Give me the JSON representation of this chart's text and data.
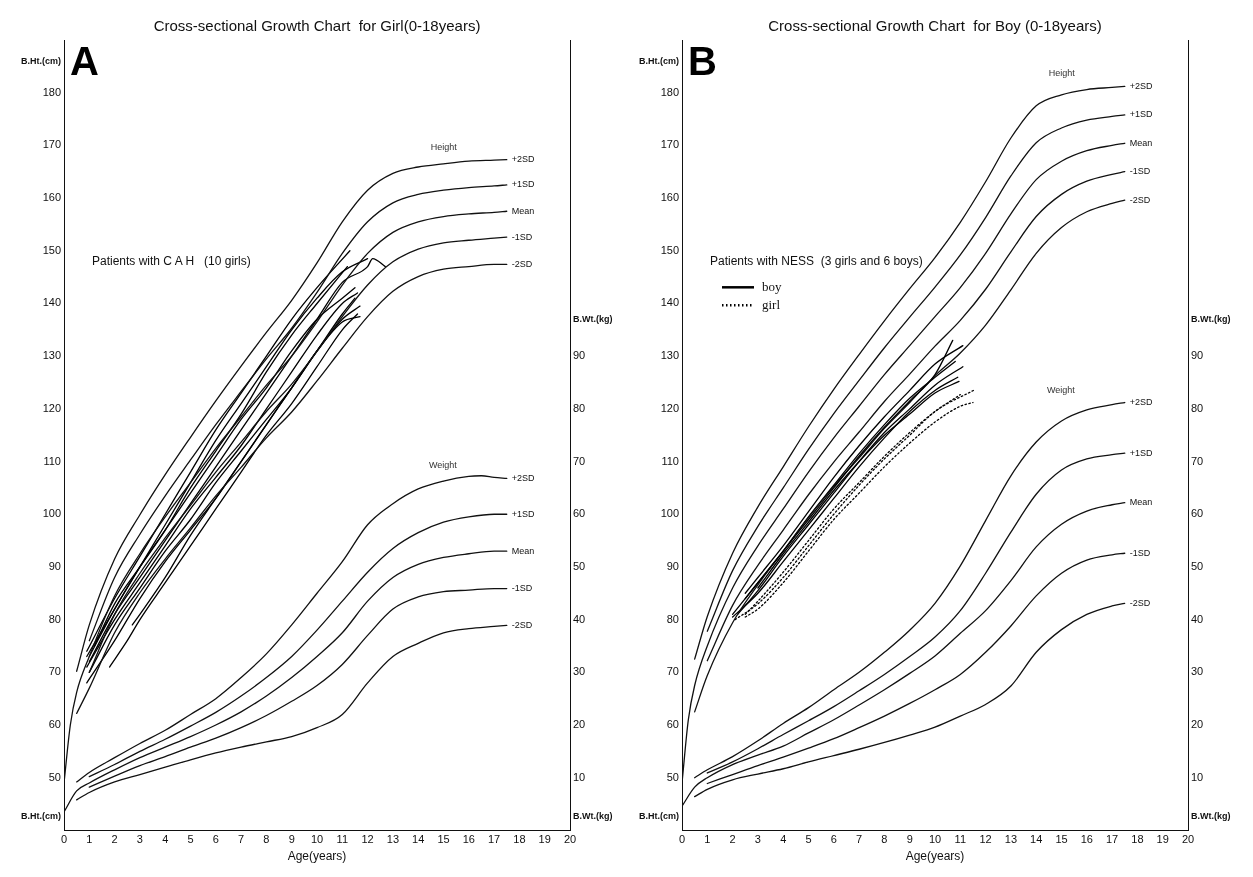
{
  "chart_data": [
    {
      "type": "line",
      "title": "Cross-sectional Growth Chart  for Girl(0-18years)",
      "xlabel": "Age(years)",
      "ylabel": "B.Ht.(cm)",
      "y2label": "B.Wt.(kg)",
      "xlim": [
        0,
        20
      ],
      "xticks": [
        0,
        1,
        2,
        3,
        4,
        5,
        6,
        7,
        8,
        9,
        10,
        11,
        12,
        13,
        14,
        15,
        16,
        17,
        18,
        19,
        20
      ],
      "ylim": [
        40,
        190
      ],
      "yticks": [
        50,
        60,
        70,
        80,
        90,
        100,
        110,
        120,
        130,
        140,
        150,
        160,
        170,
        180
      ],
      "y2lim": [
        0,
        150
      ],
      "y2ticks": [
        10,
        20,
        30,
        40,
        50,
        60,
        70,
        80,
        90
      ],
      "grid": false,
      "annotations": [
        "A",
        "Patients with C A H   (10 girls)",
        "Height",
        "Weight"
      ],
      "series": [
        {
          "name": "+2SD",
          "color": "#111111",
          "x": [
            0.5,
            1,
            2,
            3,
            4,
            5,
            6,
            7,
            8,
            9,
            10,
            11,
            12,
            13,
            14,
            15,
            16,
            17,
            17.5
          ],
          "values": [
            70.2,
            79,
            91.5,
            99.9,
            107.5,
            114.6,
            121.5,
            128.1,
            134.5,
            140.6,
            147.7,
            155.5,
            161.5,
            164.7,
            165.9,
            166.5,
            167,
            167.2,
            167.3
          ]
        },
        {
          "name": "+1SD",
          "color": "#111111",
          "x": [
            1,
            2,
            3,
            4,
            5,
            6,
            7,
            8,
            9,
            10,
            11,
            12,
            13,
            14,
            15,
            16,
            17,
            17.5
          ],
          "values": [
            76,
            88,
            96.2,
            103.5,
            110.3,
            117,
            123.3,
            129.5,
            135.3,
            142.1,
            149.5,
            155.5,
            159.1,
            160.7,
            161.5,
            162,
            162.3,
            162.5
          ]
        },
        {
          "name": "Mean",
          "color": "#111111",
          "x": [
            0,
            0.25,
            0.5,
            1,
            2,
            3,
            4,
            5,
            6,
            7,
            8,
            9,
            10,
            11,
            12,
            13,
            14,
            15,
            16,
            17,
            17.5
          ],
          "values": [
            49,
            60,
            66.2,
            73,
            84.5,
            92.5,
            99.5,
            106,
            112.5,
            118.5,
            124.5,
            130,
            136.5,
            143.5,
            149.5,
            153.5,
            155.5,
            156.5,
            157,
            157.3,
            157.5
          ]
        },
        {
          "name": "-1SD",
          "color": "#111111",
          "x": [
            1,
            2,
            3,
            4,
            5,
            6,
            7,
            8,
            9,
            10,
            11,
            12,
            13,
            14,
            15,
            16,
            17,
            17.5
          ],
          "values": [
            70,
            81,
            88.8,
            95.5,
            101.7,
            108,
            113.7,
            119.5,
            124.7,
            130.9,
            137.5,
            143.5,
            147.9,
            150.3,
            151.5,
            152,
            152.4,
            152.6
          ]
        },
        {
          "name": "-2SD",
          "color": "#111111",
          "x": [
            0.5,
            1,
            2,
            3,
            4,
            5,
            6,
            7,
            8,
            9,
            10,
            11,
            12,
            13,
            14,
            15,
            16,
            17,
            17.5
          ],
          "values": [
            62.2,
            67,
            77.5,
            85.1,
            91.5,
            97.4,
            103.5,
            108.9,
            114.5,
            119.4,
            125.3,
            131.5,
            137.5,
            142.3,
            145.1,
            146.5,
            147,
            147.4,
            147.4
          ]
        },
        {
          "name": "+2SD",
          "color": "#111111",
          "axis": "y2",
          "x": [
            0.5,
            1,
            2,
            3,
            4,
            5,
            6,
            7,
            8,
            9,
            10,
            11,
            12,
            13,
            14,
            15,
            16,
            16.5,
            17,
            17.5
          ],
          "values": [
            9.2,
            11,
            13.8,
            16.5,
            19,
            22,
            25,
            29,
            33.5,
            39,
            45,
            51,
            58,
            62,
            64.8,
            66.3,
            67.2,
            67.3,
            67,
            66.8
          ]
        },
        {
          "name": "+1SD",
          "color": "#111111",
          "axis": "y2",
          "x": [
            1,
            2,
            3,
            4,
            5,
            6,
            7,
            8,
            9,
            10,
            11,
            12,
            13,
            14,
            15,
            16,
            17,
            17.5
          ],
          "values": [
            10.2,
            12.5,
            15,
            17.3,
            19.8,
            22.4,
            25.5,
            29,
            33,
            38,
            43.5,
            49,
            53.5,
            56.5,
            58.5,
            59.5,
            60,
            60
          ]
        },
        {
          "name": "Mean",
          "color": "#111111",
          "axis": "y2",
          "x": [
            0,
            0.5,
            1,
            2,
            3,
            4,
            5,
            6,
            7,
            8,
            9,
            10,
            11,
            12,
            13,
            14,
            15,
            16,
            17,
            17.5
          ],
          "values": [
            3.5,
            7.5,
            9,
            11.5,
            13.8,
            15.8,
            17.8,
            20,
            22.5,
            25.5,
            29,
            33,
            37.5,
            43.5,
            48,
            50.5,
            51.8,
            52.5,
            53,
            53
          ]
        },
        {
          "name": "-1SD",
          "color": "#111111",
          "axis": "y2",
          "x": [
            1,
            2,
            3,
            4,
            5,
            6,
            7,
            8,
            9,
            10,
            11,
            12,
            13,
            14,
            15,
            16,
            17,
            17.5
          ],
          "values": [
            8.2,
            10.3,
            12.3,
            14,
            15.8,
            17.5,
            19.5,
            21.8,
            24.5,
            27.5,
            31.5,
            37,
            42,
            44.3,
            45.3,
            45.6,
            45.9,
            45.9
          ]
        },
        {
          "name": "-2SD",
          "color": "#111111",
          "axis": "y2",
          "x": [
            0.5,
            1,
            2,
            3,
            4,
            5,
            6,
            7,
            8,
            9,
            10,
            11,
            12,
            13,
            14,
            15,
            16,
            17,
            17.5
          ],
          "values": [
            5.8,
            7.2,
            9.2,
            10.6,
            12,
            13.4,
            14.7,
            15.8,
            16.8,
            17.8,
            19.5,
            22,
            28,
            33,
            35.5,
            37.5,
            38.3,
            38.7,
            38.9
          ]
        },
        {
          "color": "#000000",
          "x": [
            0.9,
            2,
            3,
            4,
            5,
            6,
            7,
            8,
            9,
            10,
            11.3
          ],
          "values": [
            74,
            84,
            92,
            100,
            108,
            116,
            123,
            130,
            137,
            143,
            150
          ]
        },
        {
          "color": "#000000",
          "x": [
            0.9,
            2,
            3,
            4,
            5,
            6,
            7,
            8,
            9,
            10,
            11,
            11.5
          ],
          "values": [
            73,
            82,
            90,
            97,
            104,
            111,
            118,
            124,
            131,
            137,
            141,
            143
          ]
        },
        {
          "color": "#000000",
          "x": [
            1,
            2,
            3,
            4,
            5,
            6,
            7,
            8,
            9,
            10,
            11,
            12,
            12.2,
            12.7
          ],
          "values": [
            72,
            81,
            88,
            95,
            102,
            109,
            116,
            123,
            130,
            137,
            144,
            147,
            148.5,
            147
          ]
        },
        {
          "color": "#000000",
          "x": [
            0.9,
            2,
            3,
            4,
            5,
            6,
            7,
            8,
            9,
            10,
            11,
            11.6
          ],
          "values": [
            71,
            80,
            87,
            94,
            101,
            107,
            113,
            120,
            127,
            134,
            140,
            142
          ]
        },
        {
          "color": "#000000",
          "x": [
            1,
            2,
            3,
            4,
            5,
            6,
            7,
            8,
            9,
            10,
            11,
            11.7
          ],
          "values": [
            70,
            79,
            86,
            93,
            99,
            106,
            112,
            118,
            124,
            131,
            137,
            139.5
          ]
        },
        {
          "color": "#000000",
          "x": [
            0.9,
            2,
            3,
            4,
            5,
            6,
            7,
            8,
            9,
            10,
            11,
            11.7
          ],
          "values": [
            68,
            76,
            84,
            91,
            97,
            103,
            110,
            117,
            124,
            131,
            136.5,
            137.5
          ]
        },
        {
          "color": "#000000",
          "x": [
            1.2,
            2,
            3,
            4,
            5,
            6,
            7,
            8,
            9,
            10,
            11.2
          ],
          "values": [
            75,
            83,
            90,
            97,
            105,
            112,
            119,
            127,
            134,
            140,
            147
          ]
        },
        {
          "color": "#000000",
          "x": [
            1.8,
            2.5,
            3,
            4,
            5,
            6,
            7,
            8,
            9,
            10,
            11,
            11.6
          ],
          "values": [
            71,
            76,
            80,
            87,
            94,
            101,
            108,
            115,
            121,
            128,
            135,
            138
          ]
        },
        {
          "color": "#000000",
          "x": [
            2.7,
            3,
            4,
            5,
            6,
            7,
            8,
            9,
            10,
            11,
            11.5
          ],
          "values": [
            79,
            81,
            88,
            96,
            103,
            110,
            117,
            124,
            131,
            138,
            141
          ]
        },
        {
          "color": "#000000",
          "x": [
            1,
            2,
            3,
            4,
            5,
            6,
            7,
            8,
            9,
            10,
            11,
            12
          ],
          "values": [
            73,
            82,
            90,
            98,
            106,
            114,
            121,
            128,
            135,
            141,
            146,
            148.5
          ]
        }
      ]
    },
    {
      "type": "line",
      "title": "Cross-sectional Growth Chart  for Boy (0-18years)",
      "xlabel": "Age(years)",
      "ylabel": "B.Ht.(cm)",
      "y2label": "B.Wt.(kg)",
      "xlim": [
        0,
        20
      ],
      "xticks": [
        0,
        1,
        2,
        3,
        4,
        5,
        6,
        7,
        8,
        9,
        10,
        11,
        12,
        13,
        14,
        15,
        16,
        17,
        18,
        19,
        20
      ],
      "ylim": [
        40,
        190
      ],
      "yticks": [
        50,
        60,
        70,
        80,
        90,
        100,
        110,
        120,
        130,
        140,
        150,
        160,
        170,
        180
      ],
      "y2lim": [
        0,
        150
      ],
      "y2ticks": [
        10,
        20,
        30,
        40,
        50,
        60,
        70,
        80,
        90
      ],
      "grid": false,
      "legend": "top left",
      "annotations": [
        "B",
        "Patients with NESS  (3 girls and 6 boys)",
        "Height",
        "Weight"
      ],
      "series": [
        {
          "name": "boy",
          "color": "#000000",
          "line_style": "solid",
          "x": [
            2,
            3,
            4,
            5,
            6,
            7,
            8,
            9,
            10,
            10.7
          ],
          "values": [
            81,
            87,
            93,
            99,
            105,
            111,
            116.5,
            121.5,
            126.5,
            133
          ]
        },
        {
          "name": "girl",
          "color": "#000000",
          "line_style": "dotted",
          "x": [
            2.1,
            3,
            4,
            5,
            6,
            7,
            8,
            9,
            10,
            11.6
          ],
          "values": [
            80,
            83,
            88,
            94,
            100,
            105.5,
            110.5,
            115,
            119.5,
            123.7
          ]
        },
        {
          "name": "+2SD",
          "color": "#111111",
          "x": [
            0.5,
            1,
            2,
            3,
            4,
            5,
            6,
            7,
            8,
            9,
            10,
            11,
            12,
            13,
            14,
            15,
            16,
            17,
            17.5
          ],
          "values": [
            72.5,
            80.6,
            92.6,
            101.4,
            109,
            116.6,
            123.7,
            130.3,
            136.7,
            142.8,
            148.7,
            155.4,
            163.1,
            171.4,
            177.5,
            179.6,
            180.6,
            181,
            181.2
          ]
        },
        {
          "name": "+1SD",
          "color": "#111111",
          "x": [
            1,
            2,
            3,
            4,
            5,
            6,
            7,
            8,
            9,
            10,
            11,
            12,
            13,
            14,
            15,
            16,
            17,
            17.5
          ],
          "values": [
            77.8,
            89.3,
            97.7,
            105,
            112.3,
            119.1,
            125.4,
            131.6,
            137.4,
            143.1,
            149.2,
            156.3,
            164.2,
            170.5,
            173.3,
            174.8,
            175.5,
            175.8
          ]
        },
        {
          "name": "Mean",
          "color": "#111111",
          "x": [
            0,
            0.25,
            0.5,
            1,
            2,
            3,
            4,
            5,
            6,
            7,
            8,
            9,
            10,
            11,
            12,
            13,
            14,
            15,
            16,
            17,
            17.5
          ],
          "values": [
            49,
            61,
            67.5,
            75,
            86,
            94,
            101,
            108,
            114.5,
            120.5,
            126.5,
            132,
            137.5,
            143,
            149.5,
            157,
            163.5,
            167,
            169,
            170,
            170.4
          ]
        },
        {
          "name": "-1SD",
          "color": "#111111",
          "x": [
            1,
            2,
            3,
            4,
            5,
            6,
            7,
            8,
            9,
            10,
            11,
            12,
            13,
            14,
            15,
            16,
            17,
            17.5
          ],
          "values": [
            72.2,
            82.7,
            90.3,
            97,
            103.7,
            109.9,
            115.6,
            121.4,
            126.6,
            131.9,
            136.8,
            142.7,
            149.8,
            156.5,
            160.7,
            163.2,
            164.5,
            165
          ]
        },
        {
          "name": "-2SD",
          "color": "#111111",
          "x": [
            0.5,
            1,
            2,
            3,
            4,
            5,
            6,
            7,
            8,
            9,
            10,
            11,
            12,
            13,
            14,
            15,
            16,
            17,
            17.5
          ],
          "values": [
            62.5,
            69.4,
            79.4,
            86.6,
            93,
            99.4,
            105.3,
            110.7,
            116.3,
            121.2,
            126.3,
            130.6,
            135.9,
            142.6,
            149.5,
            154.4,
            157.4,
            159,
            159.6
          ]
        },
        {
          "name": "+2SD",
          "color": "#111111",
          "axis": "y2",
          "x": [
            0.5,
            1,
            2,
            3,
            4,
            5,
            6,
            7,
            8,
            9,
            10,
            11,
            12,
            13,
            14,
            15,
            16,
            17,
            17.5
          ],
          "values": [
            10,
            11.5,
            14,
            17,
            20.3,
            23.3,
            26.7,
            30,
            33.8,
            38,
            43.1,
            50.2,
            58.8,
            67.3,
            73.7,
            77.7,
            79.8,
            80.8,
            81.2
          ]
        },
        {
          "name": "+1SD",
          "color": "#111111",
          "axis": "y2",
          "x": [
            1,
            2,
            3,
            4,
            5,
            6,
            7,
            8,
            9,
            10,
            11,
            12,
            13,
            14,
            15,
            16,
            17,
            17.5
          ],
          "values": [
            10.9,
            13,
            15.5,
            18.2,
            20.8,
            23.5,
            26.5,
            29.6,
            33,
            36.7,
            41.7,
            48.8,
            56.6,
            63.8,
            68.4,
            70.5,
            71.3,
            71.6
          ]
        },
        {
          "name": "Mean",
          "color": "#111111",
          "axis": "y2",
          "x": [
            0,
            0.5,
            1,
            2,
            3,
            4,
            5,
            6,
            7,
            8,
            9,
            10,
            11,
            12,
            13,
            14,
            15,
            16,
            17,
            17.5
          ],
          "values": [
            4.6,
            8.2,
            10,
            12.5,
            14.3,
            16,
            18.5,
            21,
            23.8,
            26.7,
            29.8,
            33.1,
            37.4,
            41.7,
            47.4,
            53.8,
            58.1,
            60.6,
            61.8,
            62.2
          ]
        },
        {
          "name": "-1SD",
          "color": "#111111",
          "axis": "y2",
          "x": [
            1,
            2,
            3,
            4,
            5,
            6,
            7,
            8,
            9,
            10,
            11,
            12,
            13,
            14,
            15,
            16,
            17,
            17.5
          ],
          "values": [
            8.9,
            10.6,
            12.3,
            13.9,
            15.6,
            17.4,
            19.5,
            21.7,
            24.1,
            26.7,
            29.6,
            33.8,
            38.8,
            44.5,
            48.8,
            51.3,
            52.3,
            52.6
          ]
        },
        {
          "name": "-2SD",
          "color": "#111111",
          "axis": "y2",
          "x": [
            0.5,
            1,
            2,
            3,
            4,
            5,
            6,
            7,
            8,
            9,
            10,
            11,
            12,
            13,
            14,
            15,
            16,
            17,
            17.5
          ],
          "values": [
            6.4,
            7.8,
            9.6,
            10.7,
            11.7,
            13,
            14.2,
            15.4,
            16.7,
            18.1,
            19.6,
            21.7,
            23.9,
            27.4,
            33.8,
            38.1,
            41,
            42.6,
            43.1
          ]
        },
        {
          "color": "#000000",
          "line_style": "solid",
          "x": [
            2.5,
            3,
            4,
            5,
            6,
            7,
            8,
            9,
            10,
            11.1
          ],
          "values": [
            85,
            88,
            94,
            100.5,
            107,
            113,
            118.5,
            123.5,
            128.5,
            132
          ]
        },
        {
          "color": "#000000",
          "line_style": "solid",
          "x": [
            2.5,
            3,
            4,
            5,
            6,
            7,
            8,
            9,
            10,
            10.8
          ],
          "values": [
            84,
            87,
            93,
            99.5,
            105.5,
            111.5,
            117,
            122,
            126,
            129
          ]
        },
        {
          "color": "#000000",
          "line_style": "solid",
          "x": [
            2.2,
            3,
            4,
            5,
            6,
            7,
            8,
            9,
            10,
            11.1
          ],
          "values": [
            81,
            85.5,
            92,
            98,
            104,
            110,
            115.5,
            120,
            124.5,
            128
          ]
        },
        {
          "color": "#000000",
          "line_style": "solid",
          "x": [
            2,
            3,
            4,
            5,
            6,
            7,
            8,
            9,
            10,
            10.9
          ],
          "values": [
            80.5,
            85,
            91,
            97,
            103,
            109,
            114.5,
            119.5,
            123.5,
            126
          ]
        },
        {
          "color": "#000000",
          "line_style": "solid",
          "x": [
            3,
            4,
            5,
            6,
            7,
            8,
            9,
            10,
            10.95
          ],
          "values": [
            86,
            92.5,
            98.5,
            104.5,
            110,
            115,
            119,
            123,
            125.2
          ]
        },
        {
          "color": "#000000",
          "line_style": "dotted",
          "x": [
            2.5,
            3,
            4,
            5,
            6,
            7,
            8,
            9,
            10,
            11
          ],
          "values": [
            81,
            83.5,
            89,
            95,
            101,
            106,
            111,
            115.5,
            119.5,
            122.7
          ]
        },
        {
          "color": "#000000",
          "line_style": "dotted",
          "x": [
            2.5,
            3,
            4,
            5,
            6,
            7,
            8,
            9,
            10,
            11,
            11.5
          ],
          "values": [
            80.5,
            82,
            87,
            93,
            99,
            104,
            109,
            113.5,
            117.5,
            120.5,
            121.2
          ]
        }
      ]
    }
  ]
}
